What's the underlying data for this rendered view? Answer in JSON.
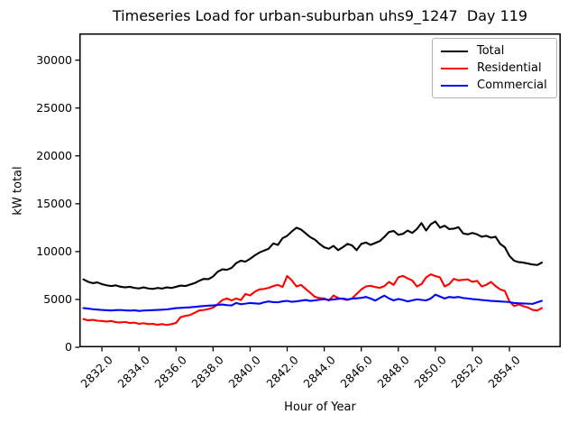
{
  "chart_data": {
    "type": "line",
    "title": "Timeseries Load for urban-suburban uhs9_1247  Day 119",
    "xlabel": "Hour of Year",
    "ylabel": "kW total",
    "grid": false,
    "legend_position": "upper right",
    "x_start": 2831.0,
    "x_step": 0.25,
    "xlim": [
      2830.78,
      2856.77
    ],
    "ylim": [
      0,
      32800
    ],
    "xtick_values": [
      2832,
      2834,
      2836,
      2838,
      2840,
      2842,
      2844,
      2846,
      2848,
      2850,
      2852,
      2854
    ],
    "xtick_labels": [
      "2832.0",
      "2834.0",
      "2836.0",
      "2838.0",
      "2840.0",
      "2842.0",
      "2844.0",
      "2846.0",
      "2848.0",
      "2850.0",
      "2852.0",
      "2854.0"
    ],
    "ytick_values": [
      0,
      5000,
      10000,
      15000,
      20000,
      25000,
      30000
    ],
    "ytick_labels": [
      "0",
      "5000",
      "10000",
      "15000",
      "20000",
      "25000",
      "30000"
    ],
    "series": [
      {
        "name": "Total",
        "color": "#000000",
        "values": [
          7100,
          6850,
          6700,
          6780,
          6600,
          6480,
          6400,
          6470,
          6330,
          6260,
          6320,
          6210,
          6150,
          6260,
          6150,
          6100,
          6200,
          6140,
          6260,
          6200,
          6320,
          6450,
          6400,
          6550,
          6700,
          6950,
          7150,
          7120,
          7400,
          7900,
          8150,
          8100,
          8300,
          8800,
          9050,
          8950,
          9250,
          9600,
          9900,
          10100,
          10300,
          10850,
          10700,
          11400,
          11650,
          12100,
          12500,
          12300,
          11900,
          11500,
          11250,
          10800,
          10450,
          10300,
          10600,
          10150,
          10450,
          10800,
          10650,
          10150,
          10800,
          10950,
          10700,
          10900,
          11100,
          11550,
          12050,
          12150,
          11750,
          11850,
          12200,
          11950,
          12350,
          12980,
          12200,
          12850,
          13150,
          12500,
          12700,
          12350,
          12400,
          12550,
          11900,
          11800,
          11950,
          11800,
          11550,
          11650,
          11450,
          11550,
          10800,
          10450,
          9550,
          9050,
          8900,
          8850,
          8750,
          8650,
          8600,
          8850
        ]
      },
      {
        "name": "Residential",
        "color": "#ff0000",
        "values": [
          2950,
          2820,
          2870,
          2780,
          2750,
          2690,
          2750,
          2620,
          2600,
          2650,
          2540,
          2580,
          2450,
          2520,
          2420,
          2450,
          2350,
          2430,
          2330,
          2420,
          2550,
          3150,
          3280,
          3370,
          3600,
          3845,
          3900,
          4000,
          4150,
          4500,
          4940,
          5100,
          4900,
          5100,
          4940,
          5576,
          5420,
          5800,
          6048,
          6100,
          6209,
          6400,
          6521,
          6300,
          7450,
          7000,
          6360,
          6521,
          6100,
          5700,
          5263,
          5150,
          5103,
          4884,
          5415,
          5150,
          5050,
          4943,
          5100,
          5576,
          6048,
          6360,
          6426,
          6300,
          6209,
          6400,
          6833,
          6521,
          7305,
          7466,
          7200,
          6993,
          6360,
          6600,
          7305,
          7623,
          7450,
          7305,
          6360,
          6600,
          7154,
          6993,
          7050,
          7100,
          6833,
          6950,
          6360,
          6521,
          6833,
          6400,
          6048,
          5889,
          4790,
          4318,
          4470,
          4300,
          4158,
          3904,
          3845,
          4100
        ]
      },
      {
        "name": "Commercial",
        "color": "#0000ff",
        "values": [
          4100,
          4050,
          3980,
          3940,
          3900,
          3870,
          3850,
          3880,
          3900,
          3860,
          3830,
          3870,
          3800,
          3840,
          3860,
          3880,
          3904,
          3930,
          3960,
          4020,
          4092,
          4120,
          4150,
          4180,
          4222,
          4270,
          4318,
          4350,
          4375,
          4420,
          4470,
          4400,
          4380,
          4631,
          4500,
          4560,
          4631,
          4590,
          4550,
          4700,
          4790,
          4720,
          4700,
          4800,
          4851,
          4750,
          4800,
          4870,
          4943,
          4850,
          4900,
          4980,
          5037,
          4950,
          5000,
          5060,
          5103,
          5000,
          5080,
          5120,
          5166,
          5263,
          5100,
          4880,
          5150,
          5400,
          5100,
          4900,
          5050,
          4950,
          4790,
          4900,
          5010,
          4950,
          4900,
          5100,
          5500,
          5300,
          5100,
          5263,
          5200,
          5263,
          5150,
          5100,
          5040,
          5000,
          4940,
          4900,
          4848,
          4820,
          4790,
          4760,
          4725,
          4631,
          4600,
          4580,
          4560,
          4536,
          4700,
          4850
        ]
      }
    ]
  }
}
